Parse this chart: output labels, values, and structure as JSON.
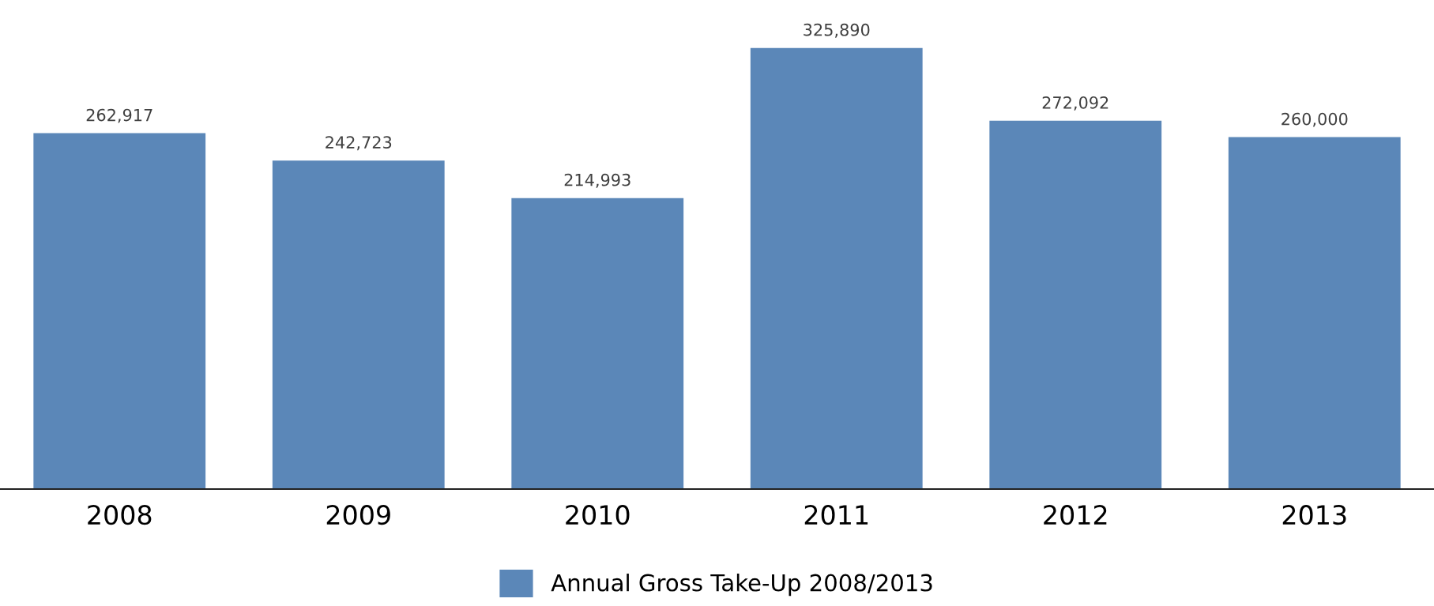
{
  "chart_data": {
    "type": "bar",
    "categories": [
      "2008",
      "2009",
      "2010",
      "2011",
      "2012",
      "2013"
    ],
    "series": [
      {
        "name": "Annual Gross Take-Up 2008/2013",
        "color": "#5b87b8",
        "values": [
          262917,
          242723,
          214993,
          325890,
          272092,
          260000
        ],
        "value_labels": [
          "262,917",
          "242,723",
          "214,993",
          "325,890",
          "272,092",
          "260,000"
        ]
      }
    ],
    "legend": "bottom",
    "grid": false
  }
}
